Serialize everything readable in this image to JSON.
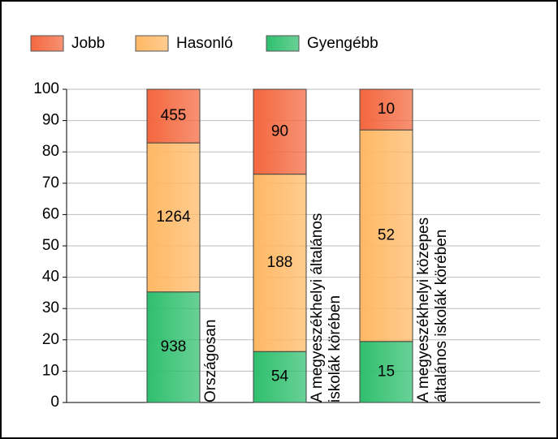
{
  "chart_data": {
    "type": "bar",
    "stacking": "percent",
    "categories": [
      [
        "Országosan"
      ],
      [
        "A megyeszékhelyi általános",
        "iskolák körében"
      ],
      [
        "A megyeszékhelyi közepes",
        "általános iskolák körében"
      ]
    ],
    "series": [
      {
        "name": "Gyengébb",
        "color": "#2fbf6e",
        "values": [
          938,
          54,
          15
        ]
      },
      {
        "name": "Hasonló",
        "color": "#ffb864",
        "values": [
          1264,
          188,
          52
        ]
      },
      {
        "name": "Jobb",
        "color": "#f4673e",
        "values": [
          455,
          90,
          10
        ]
      }
    ],
    "legend_order": [
      2,
      1,
      0
    ],
    "ylim": [
      0,
      100
    ],
    "yticks": [
      0,
      10,
      20,
      30,
      40,
      50,
      60,
      70,
      80,
      90,
      100
    ],
    "grid": true
  }
}
